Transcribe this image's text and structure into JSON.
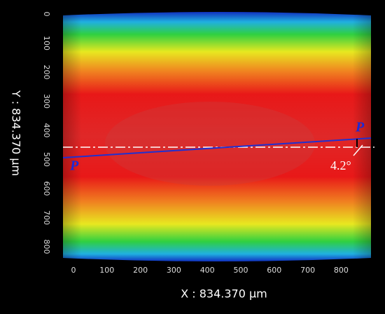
{
  "y_axis": {
    "label": "Y : 834.370 μm",
    "ticks": [
      "0",
      "100",
      "200",
      "300",
      "400",
      "500",
      "600",
      "700",
      "800"
    ]
  },
  "x_axis": {
    "label": "X : 834.370 μm",
    "ticks": [
      "0",
      "100",
      "200",
      "300",
      "400",
      "500",
      "600",
      "700",
      "800"
    ]
  },
  "annotations": {
    "left_point": "P",
    "right_point": "P",
    "angle": "4.2°"
  }
}
